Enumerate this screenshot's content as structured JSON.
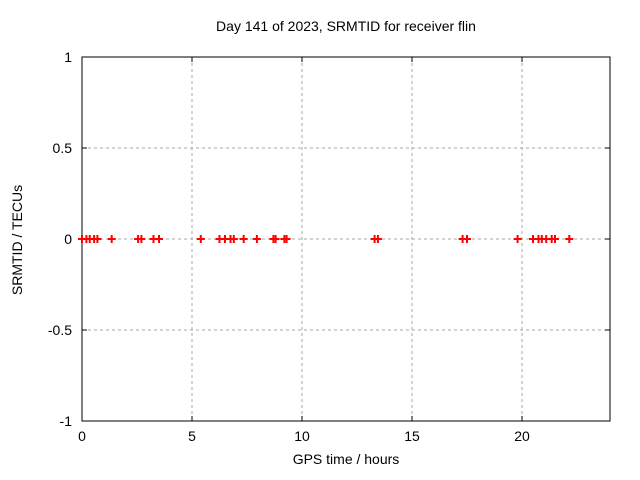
{
  "chart_data": {
    "type": "scatter",
    "title": "Day 141 of 2023, SRMTID for receiver flin",
    "xlabel": "GPS time / hours",
    "ylabel": "SRMTID / TECUs",
    "xlim": [
      0,
      24
    ],
    "ylim": [
      -1,
      1
    ],
    "xticks": [
      0,
      5,
      10,
      15,
      20
    ],
    "yticks": [
      1,
      0.5,
      0,
      -0.5,
      -1
    ],
    "grid": true,
    "legend_position": "none",
    "colors": {
      "marker": "#ff0000",
      "grid": "#a9a9a9",
      "axis": "#000000",
      "background": "#ffffff"
    },
    "series": [
      {
        "name": "SRMTID",
        "marker": "plus",
        "x": [
          0,
          0.2,
          0.35,
          0.55,
          0.7,
          1.35,
          2.55,
          2.7,
          3.25,
          3.5,
          5.4,
          6.25,
          6.5,
          6.75,
          6.9,
          7.35,
          7.95,
          8.7,
          8.8,
          9.2,
          9.3,
          13.3,
          13.45,
          17.3,
          17.5,
          19.8,
          20.5,
          20.75,
          20.9,
          21.1,
          21.35,
          21.5,
          22.15
        ],
        "y": [
          0,
          0,
          0,
          0,
          0,
          0,
          0,
          0,
          0,
          0,
          0,
          0,
          0,
          0,
          0,
          0,
          0,
          0,
          0,
          0,
          0,
          0,
          0,
          0,
          0,
          0,
          0,
          0,
          0,
          0,
          0,
          0,
          0
        ]
      }
    ]
  }
}
